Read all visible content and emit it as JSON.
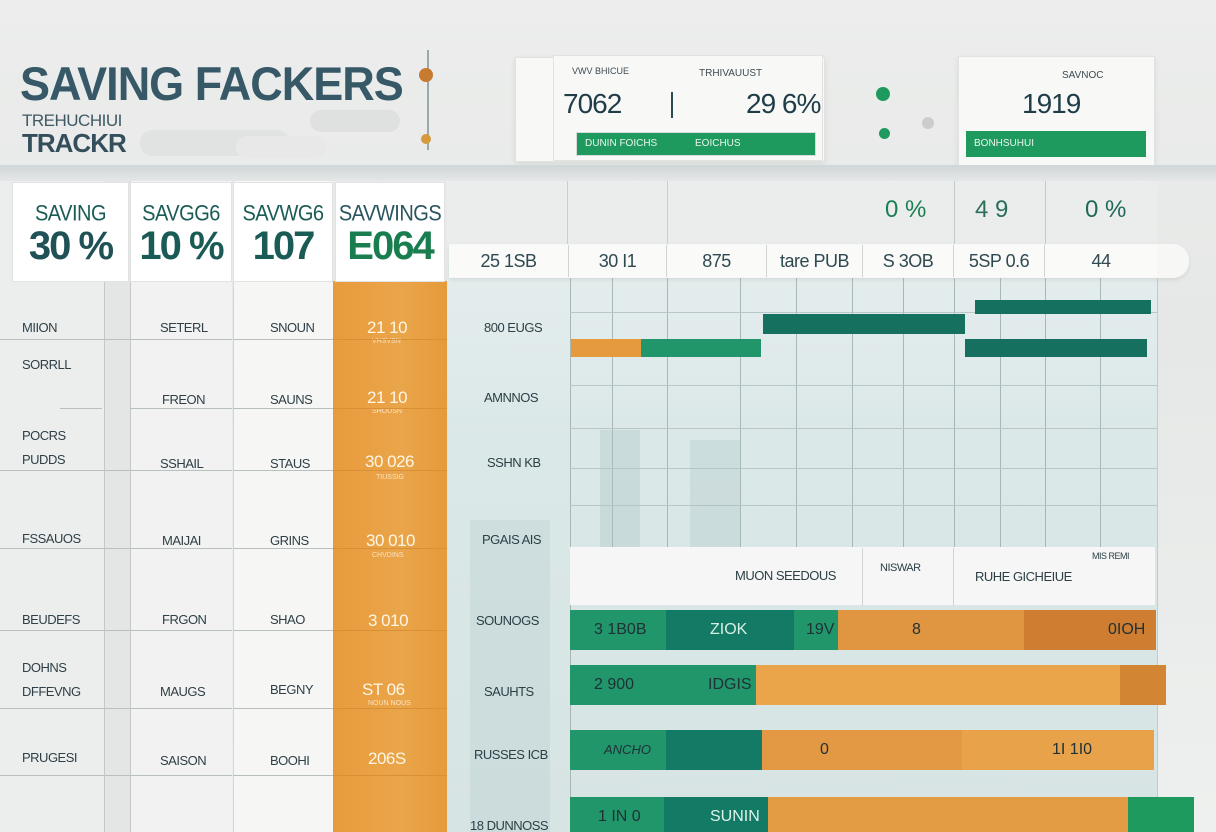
{
  "header": {
    "title": "SAVING FACKERS",
    "subtitle_small": "TREHUCHIUI",
    "subtitle_large": "TRACKR"
  },
  "kpi_wide": {
    "label_left": "VWV BHICUE",
    "label_right": "TRHIVAUUST",
    "value_left": "7062",
    "value_right": "29 6%",
    "bar_left": "DUNIN FOICHS",
    "bar_right": "EOICHUS"
  },
  "kpi_small": {
    "label": "SAVNOC",
    "value": "1919",
    "bar": "BONHSUHUI"
  },
  "summary_columns": [
    {
      "label": "SAVING",
      "value": "30 %"
    },
    {
      "label": "SAVGG6",
      "value": "10 %"
    },
    {
      "label": "SAVWG6",
      "value": "107"
    },
    {
      "label": "SAVWINGS",
      "value": "E064"
    }
  ],
  "row_labels": [
    "MIION",
    "SORRLL",
    "POCRS",
    "PUDDS",
    "FSSAUOS",
    "BEUDEFS",
    "DOHNS",
    "DFFEVNG",
    "PRUGESI"
  ],
  "col2_values": [
    "SETERL",
    "FREON",
    "SSHAIL",
    "MAIJAI",
    "FRGON",
    "MAUGS",
    "SAISON"
  ],
  "col3_values": [
    "SNOUN",
    "SAUNS",
    "STAUS",
    "GRINS",
    "SHAO",
    "BEGNY",
    "BOOHI"
  ],
  "col4_values": [
    "21 10",
    "21 10",
    "30 026",
    "30 010",
    "3 010",
    "ST 06",
    "206S"
  ],
  "col4_small": [
    "VHSVSN",
    "SHOUSN",
    "TIUSSIG",
    "CHVDINS",
    "",
    "NOUN NOUS",
    ""
  ],
  "grid_header": [
    "25 1SB",
    "30 I1",
    "875",
    "tare PUB",
    "S 3OB",
    "5SP 0.6",
    "44"
  ],
  "grid_header_top": [
    "0 %",
    "4 9",
    "0 %"
  ],
  "grid_row_labels": [
    "800 EUGS",
    "AMNNOS",
    "SSHN KB",
    "PGAIS AIS",
    "SOUNOGS",
    "SAUHTS",
    "RUSSES ICB",
    "18 DUNNOSS"
  ],
  "mid_headers": [
    "MUON SEEDOUS",
    "NISWAR",
    "RUHE GICHEIUE",
    "MIS REMI"
  ],
  "big_bars": [
    {
      "a": "3 1B0B",
      "b": "ZIOK",
      "c": "19V",
      "d": "8",
      "e": "0IOH"
    },
    {
      "a": "2 900",
      "b": "IDGIS",
      "c": "",
      "d": "",
      "e": ""
    },
    {
      "a": "ANCHO",
      "b": "",
      "c": "0",
      "d": "",
      "e": "1I 1I0"
    },
    {
      "a": "1 IN 0",
      "b": "SUNIN",
      "c": "",
      "d": "",
      "e": ""
    }
  ]
}
